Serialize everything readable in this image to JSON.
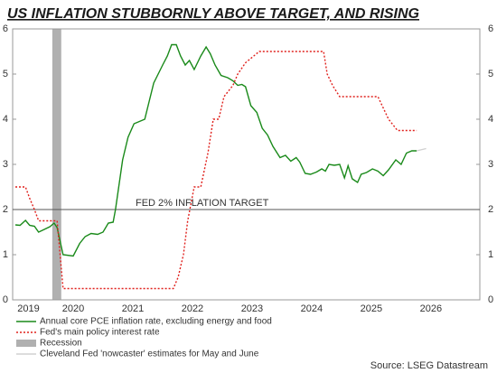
{
  "chart_data": {
    "type": "line",
    "title": "US INFLATION STUBBORNLY ABOVE TARGET, AND RISING",
    "source": "Source: LSEG Datastream",
    "xlim": [
      2019.485,
      2027.32
    ],
    "xticks": [
      {
        "value": 2019.75,
        "label": "2019"
      },
      {
        "value": 2020.5,
        "label": "2020"
      },
      {
        "value": 2021.5,
        "label": "2021"
      },
      {
        "value": 2022.5,
        "label": "2022"
      },
      {
        "value": 2023.5,
        "label": "2023"
      },
      {
        "value": 2024.5,
        "label": "2024"
      },
      {
        "value": 2025.5,
        "label": "2025"
      },
      {
        "value": 2026.5,
        "label": "2026"
      }
    ],
    "ylim": [
      0,
      6
    ],
    "yticks": [
      0,
      1,
      2,
      3,
      4,
      5,
      6
    ],
    "target": {
      "value": 2,
      "label": "FED 2% INFLATION TARGET",
      "color": "#555555"
    },
    "recession": {
      "name": "Recession",
      "color": "#b0b0b0",
      "x": [
        2020.15,
        2020.3
      ]
    },
    "series": [
      {
        "name": "Annual core PCE inflation rate, excluding energy and food",
        "color": "#1a8a1a",
        "dash": "none",
        "x": [
          2019.53,
          2019.61,
          2019.7,
          2019.77,
          2019.85,
          2019.92,
          2020.0,
          2020.11,
          2020.18,
          2020.23,
          2020.33,
          2020.5,
          2020.61,
          2020.7,
          2020.8,
          2020.91,
          2021.0,
          2021.09,
          2021.17,
          2021.21,
          2021.33,
          2021.42,
          2021.52,
          2021.7,
          2021.85,
          2022.0,
          2022.08,
          2022.15,
          2022.23,
          2022.3,
          2022.38,
          2022.45,
          2022.53,
          2022.64,
          2022.73,
          2022.8,
          2022.88,
          2022.98,
          2023.09,
          2023.18,
          2023.26,
          2023.33,
          2023.39,
          2023.48,
          2023.58,
          2023.67,
          2023.76,
          2023.85,
          2023.97,
          2024.06,
          2024.15,
          2024.24,
          2024.3,
          2024.39,
          2024.48,
          2024.58,
          2024.67,
          2024.73,
          2024.79,
          2024.88,
          2024.97,
          2025.05,
          2025.11,
          2025.18,
          2025.27,
          2025.33,
          2025.42,
          2025.52,
          2025.61,
          2025.7,
          2025.79,
          2025.91,
          2026.0,
          2026.09,
          2026.18,
          2026.26
        ],
        "values": [
          1.66,
          1.65,
          1.76,
          1.65,
          1.63,
          1.5,
          1.55,
          1.62,
          1.7,
          1.6,
          1.0,
          0.97,
          1.25,
          1.4,
          1.47,
          1.45,
          1.5,
          1.7,
          1.72,
          2.0,
          3.1,
          3.6,
          3.9,
          4.0,
          4.8,
          5.2,
          5.4,
          5.65,
          5.65,
          5.4,
          5.2,
          5.3,
          5.1,
          5.4,
          5.6,
          5.45,
          5.2,
          4.97,
          4.92,
          4.85,
          4.75,
          4.77,
          4.72,
          4.3,
          4.15,
          3.8,
          3.65,
          3.4,
          3.15,
          3.2,
          3.07,
          3.15,
          3.05,
          2.8,
          2.78,
          2.83,
          2.9,
          2.85,
          3.0,
          2.98,
          3.0,
          2.7,
          2.97,
          2.68,
          2.6,
          2.78,
          2.82,
          2.9,
          2.85,
          2.75,
          2.88,
          3.1,
          3.0,
          3.25,
          3.3,
          3.3
        ]
      },
      {
        "name": "Fed's main policy interest rate",
        "color": "#e0201c",
        "dash": "2,2",
        "x": [
          2019.53,
          2019.7,
          2019.77,
          2019.85,
          2019.92,
          2020.23,
          2020.33,
          2022.18,
          2022.26,
          2022.35,
          2022.42,
          2022.53,
          2022.64,
          2022.76,
          2022.85,
          2022.94,
          2023.03,
          2023.18,
          2023.26,
          2023.39,
          2023.62,
          2024.7,
          2024.76,
          2024.85,
          2024.97,
          2025.61,
          2025.7,
          2025.79,
          2025.94,
          2026.26
        ],
        "values": [
          2.5,
          2.5,
          2.25,
          2.0,
          1.75,
          1.75,
          0.25,
          0.25,
          0.5,
          1.0,
          1.75,
          2.5,
          2.5,
          3.25,
          4.0,
          4.0,
          4.5,
          4.75,
          5.0,
          5.25,
          5.5,
          5.5,
          5.0,
          4.75,
          4.5,
          4.5,
          4.25,
          4.0,
          3.75,
          3.75
        ]
      },
      {
        "name": "Cleveland Fed 'nowcaster' estimates for May and June",
        "color": "#d0d0d0",
        "dash": "none",
        "x": [
          2026.26,
          2026.42
        ],
        "values": [
          3.3,
          3.35
        ]
      }
    ]
  }
}
